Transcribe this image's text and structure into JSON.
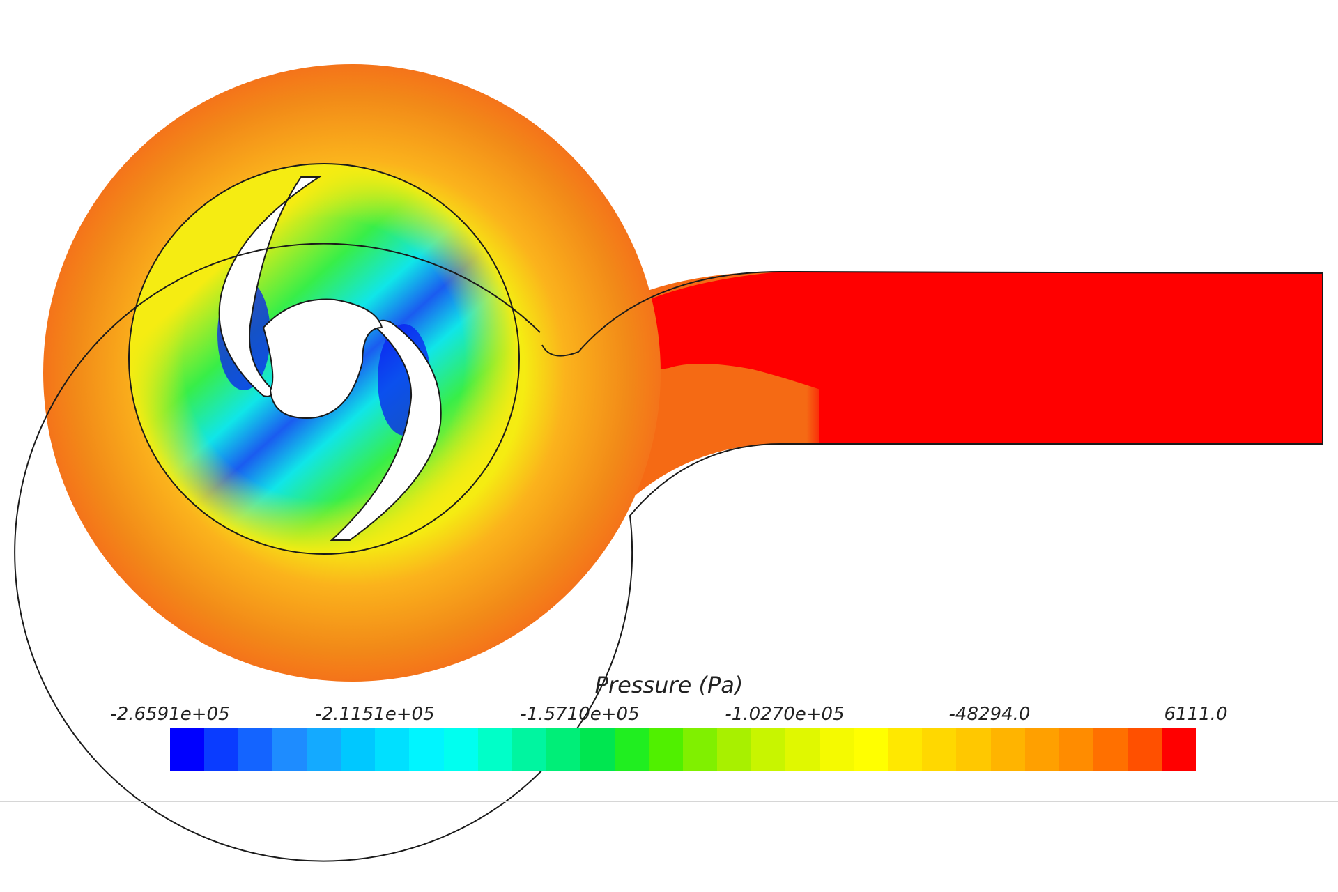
{
  "legend": {
    "title": "Pressure (Pa)",
    "tick_labels": [
      "-2.6591e+05",
      "-2.1151e+05",
      "-1.5710e+05",
      "-1.0270e+05",
      "-48294.0",
      "6111.0"
    ],
    "range": [
      -265910,
      6111
    ],
    "colors": [
      "#0000ff",
      "#0a3cff",
      "#1464ff",
      "#1e8cff",
      "#14aaff",
      "#00c8ff",
      "#00e0ff",
      "#00f5ff",
      "#00fff0",
      "#00ffc8",
      "#00f5a0",
      "#00ee78",
      "#00e650",
      "#20ee20",
      "#50f000",
      "#80f000",
      "#a8f000",
      "#c8f500",
      "#e0f800",
      "#f5fa00",
      "#ffff00",
      "#ffe800",
      "#ffd800",
      "#ffc800",
      "#ffb400",
      "#ffa000",
      "#ff8c00",
      "#ff7000",
      "#ff5000",
      "#ff0000"
    ]
  },
  "contour": {
    "colors": {
      "volute_outer": "#f28a18",
      "volute_mid": "#fbb31c",
      "volute_left_edge": "#f5701a",
      "impeller_yellow": "#f5ec12",
      "impeller_green": "#38ee48",
      "impeller_cyan": "#10e6e8",
      "impeller_blue": "#1a5cf0",
      "impeller_deep_blue": "#0a1ef0",
      "outlet_transition": "#f56a14",
      "outlet_red": "#ff0000",
      "outline": "#1a1a1a"
    }
  }
}
